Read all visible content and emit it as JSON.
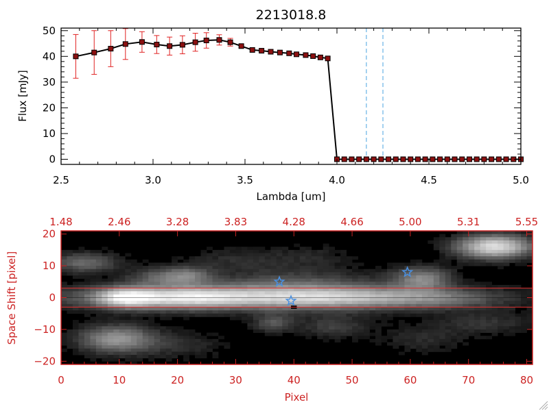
{
  "chart_data": [
    {
      "type": "line",
      "title": "2213018.8",
      "xlabel": "Lambda [um]",
      "ylabel": "Flux [mJy]",
      "xlim": [
        2.5,
        5.0
      ],
      "ylim": [
        -2,
        51
      ],
      "x_ticks": [
        "2.5",
        "3.0",
        "3.5",
        "4.0",
        "4.5",
        "5.0"
      ],
      "x_tick_values": [
        2.5,
        3.0,
        3.5,
        4.0,
        4.5,
        5.0
      ],
      "y_ticks": [
        "0",
        "10",
        "20",
        "30",
        "40",
        "50"
      ],
      "y_tick_values": [
        0,
        10,
        20,
        30,
        40,
        50
      ],
      "series": [
        {
          "name": "flux",
          "color": "#000000",
          "marker_color": "#8b1010",
          "errorbar_color": "#e02020",
          "x": [
            2.58,
            2.68,
            2.77,
            2.85,
            2.94,
            3.02,
            3.09,
            3.16,
            3.23,
            3.29,
            3.36,
            3.42,
            3.48,
            3.54,
            3.59,
            3.64,
            3.69,
            3.74,
            3.78,
            3.83,
            3.87,
            3.91,
            3.95,
            4.0,
            4.04,
            4.08,
            4.12,
            4.16,
            4.2,
            4.24,
            4.28,
            4.32,
            4.36,
            4.4,
            4.44,
            4.48,
            4.52,
            4.56,
            4.6,
            4.64,
            4.68,
            4.72,
            4.76,
            4.8,
            4.84,
            4.88,
            4.92,
            4.96,
            5.0
          ],
          "y": [
            40.0,
            41.5,
            43.0,
            44.8,
            45.6,
            44.6,
            44.0,
            44.5,
            45.5,
            46.2,
            46.4,
            45.5,
            44.0,
            42.5,
            42.2,
            41.8,
            41.5,
            41.2,
            40.8,
            40.5,
            40.1,
            39.6,
            39.2,
            0,
            0,
            0,
            0,
            0,
            0,
            0,
            0,
            0,
            0,
            0,
            0,
            0,
            0,
            0,
            0,
            0,
            0,
            0,
            0,
            0,
            0,
            0,
            0,
            0,
            0
          ],
          "yerr": [
            8.5,
            8.5,
            7.0,
            6.0,
            4.0,
            3.5,
            3.5,
            3.5,
            3.5,
            3.0,
            2.0,
            1.5,
            0,
            0,
            0,
            0,
            0,
            0,
            0,
            0,
            0,
            0,
            0,
            0,
            0,
            0,
            0,
            0,
            0,
            0,
            0,
            0,
            0,
            0,
            0,
            0,
            0,
            0,
            0,
            0,
            0,
            0,
            0,
            0,
            0,
            0,
            0,
            0,
            0
          ]
        }
      ],
      "vlines": [
        {
          "x": 4.16,
          "color": "#4aa3e0",
          "style": "dashed"
        },
        {
          "x": 4.25,
          "color": "#4aa3e0",
          "style": "dashed"
        }
      ],
      "baseline": {
        "y": 0,
        "color": "#e02020",
        "style": "dashed",
        "from": 4.0
      }
    },
    {
      "type": "heatmap",
      "xlabel": "Pixel",
      "ylabel": "Space Shift [pixel]",
      "xlim": [
        0,
        81
      ],
      "ylim": [
        -21,
        21
      ],
      "x_ticks": [
        "0",
        "10",
        "20",
        "30",
        "40",
        "50",
        "60",
        "70",
        "80"
      ],
      "x_tick_values": [
        0,
        10,
        20,
        30,
        40,
        50,
        60,
        70,
        80
      ],
      "y_ticks": [
        "−20",
        "−10",
        "0",
        "10",
        "20"
      ],
      "y_tick_values": [
        -20,
        -10,
        0,
        10,
        20
      ],
      "top_ticks": [
        "1.48",
        "2.46",
        "3.28",
        "3.83",
        "4.28",
        "4.66",
        "5.00",
        "5.31",
        "5.55"
      ],
      "top_tick_positions": [
        0,
        10,
        20,
        30,
        40,
        50,
        60,
        70,
        80
      ],
      "axis_color": "#cc2222",
      "frame_color": "#cc2222",
      "extraction_lines_y": [
        3,
        -3
      ],
      "extraction_line_color": "#e03030",
      "center_line_y": 0,
      "markers": [
        {
          "x": 37.5,
          "y": 5,
          "shape": "star",
          "color": "#4a90e0"
        },
        {
          "x": 39.5,
          "y": -1,
          "shape": "star",
          "color": "#4a90e0"
        },
        {
          "x": 59.5,
          "y": 8,
          "shape": "star",
          "color": "#4a90e0"
        }
      ],
      "blobs": [
        {
          "x": 35,
          "y": 0,
          "sx": 22,
          "sy": 2.6,
          "amp": 0.72
        },
        {
          "x": 11,
          "y": 0,
          "sx": 3.5,
          "sy": 2.2,
          "amp": 0.62
        },
        {
          "x": 21,
          "y": 0,
          "sx": 6,
          "sy": 2.4,
          "amp": 0.35
        },
        {
          "x": 50,
          "y": 0,
          "sx": 10,
          "sy": 2.3,
          "amp": 0.18
        },
        {
          "x": 66,
          "y": -0.5,
          "sx": 6,
          "sy": 2.0,
          "amp": 0.15
        },
        {
          "x": 74.5,
          "y": 16,
          "sx": 4.5,
          "sy": 2.6,
          "amp": 0.85
        },
        {
          "x": 62,
          "y": 6,
          "sx": 3.5,
          "sy": 2.5,
          "amp": 0.45
        },
        {
          "x": 9.5,
          "y": -13,
          "sx": 4.5,
          "sy": 3.0,
          "amp": 0.52
        },
        {
          "x": 4,
          "y": 11,
          "sx": 4,
          "sy": 2.2,
          "amp": 0.35
        },
        {
          "x": 17,
          "y": 6.5,
          "sx": 4,
          "sy": 2.0,
          "amp": 0.28
        },
        {
          "x": 22,
          "y": 7,
          "sx": 3,
          "sy": 2.0,
          "amp": 0.3
        },
        {
          "x": 40,
          "y": 5,
          "sx": 10,
          "sy": 3.0,
          "amp": 0.22
        },
        {
          "x": 36.5,
          "y": -8,
          "sx": 2.5,
          "sy": 2.0,
          "amp": 0.28
        },
        {
          "x": 47,
          "y": -9,
          "sx": 4,
          "sy": 2.5,
          "amp": 0.2
        },
        {
          "x": 73,
          "y": -8,
          "sx": 6,
          "sy": 2.5,
          "amp": 0.15
        },
        {
          "x": 62,
          "y": -13,
          "sx": 5,
          "sy": 3.0,
          "amp": 0.12
        },
        {
          "x": 30,
          "y": 12,
          "sx": 6,
          "sy": 2.5,
          "amp": 0.12
        },
        {
          "x": 20,
          "y": -15,
          "sx": 6,
          "sy": 3.0,
          "amp": 0.12
        },
        {
          "x": 43,
          "y": 13,
          "sx": 5,
          "sy": 2.5,
          "amp": 0.1
        }
      ]
    }
  ]
}
